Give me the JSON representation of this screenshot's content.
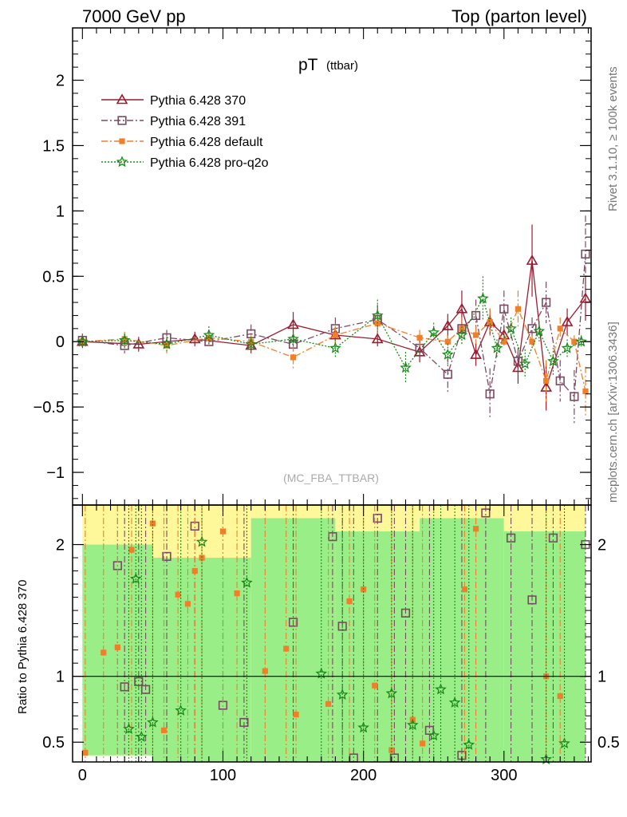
{
  "header": {
    "left": "7000 GeV pp",
    "right": "Top (parton level)"
  },
  "side": {
    "rivet": "Rivet 3.1.10, ≥ 100k events",
    "mcplots": "mcplots.cern.ch [arXiv:1306.3436]"
  },
  "plot_title": {
    "main": "pT",
    "sub": "(ttbar)"
  },
  "watermark": "(MC_FBA_TTBAR)",
  "ratio_ylabel": "Ratio to Pythia 6.428 370",
  "chart_data": {
    "type": "scatter",
    "title": "pT (ttbar)",
    "xlabel": "",
    "ylabel": "",
    "xlim": [
      -7,
      362
    ],
    "ylim": [
      -1.25,
      2.4
    ],
    "xticks": [
      0,
      100,
      200,
      300
    ],
    "yticks": [
      -1,
      -0.5,
      0,
      0.5,
      1,
      1.5,
      2
    ],
    "ytick_labels": [
      "−1",
      "−0.5",
      "0",
      "0.5",
      "1",
      "1.5",
      "2"
    ],
    "legend_position": "top-left",
    "grid": false,
    "series": [
      {
        "name": "Pythia 6.428 370",
        "color": "#9b1b2f",
        "marker": "triangle-open",
        "line": "solid",
        "x": [
          0,
          40,
          80,
          120,
          150,
          180,
          210,
          240,
          260,
          270,
          280,
          290,
          300,
          310,
          320,
          330,
          345,
          358
        ],
        "y": [
          0.0,
          -0.02,
          0.02,
          -0.03,
          0.13,
          0.05,
          0.02,
          -0.08,
          0.12,
          0.25,
          -0.1,
          0.15,
          0.05,
          -0.2,
          0.62,
          -0.35,
          0.15,
          0.33
        ]
      },
      {
        "name": "Pythia 6.428 391",
        "color": "#7a4a62",
        "marker": "square-open",
        "line": "dashdot",
        "x": [
          0,
          30,
          60,
          90,
          120,
          150,
          180,
          210,
          240,
          260,
          270,
          280,
          290,
          300,
          310,
          320,
          330,
          340,
          350,
          358
        ],
        "y": [
          0.01,
          -0.03,
          0.03,
          0.0,
          0.06,
          -0.02,
          0.1,
          0.17,
          -0.05,
          -0.25,
          0.1,
          0.2,
          -0.4,
          0.25,
          -0.15,
          0.1,
          0.3,
          -0.3,
          -0.42,
          0.67
        ]
      },
      {
        "name": "Pythia 6.428 default",
        "color": "#f07f2a",
        "marker": "square-filled",
        "line": "dashdot",
        "x": [
          0,
          30,
          60,
          90,
          120,
          150,
          180,
          210,
          240,
          260,
          270,
          280,
          290,
          300,
          310,
          320,
          330,
          340,
          350,
          358
        ],
        "y": [
          0.0,
          0.02,
          -0.03,
          0.03,
          0.0,
          -0.12,
          0.05,
          0.14,
          0.03,
          0.0,
          0.1,
          0.05,
          0.15,
          0.0,
          0.25,
          0.0,
          -0.3,
          0.1,
          0.0,
          -0.38
        ]
      },
      {
        "name": "Pythia 6.428 pro-q2o",
        "color": "#1a8a1a",
        "marker": "star",
        "line": "dotted",
        "x": [
          0,
          30,
          60,
          90,
          120,
          150,
          180,
          210,
          230,
          250,
          260,
          270,
          285,
          295,
          305,
          315,
          325,
          335,
          345,
          355
        ],
        "y": [
          0.0,
          0.01,
          -0.02,
          0.05,
          -0.02,
          0.02,
          -0.05,
          0.2,
          -0.2,
          0.07,
          -0.1,
          0.05,
          0.33,
          -0.05,
          0.1,
          -0.17,
          0.08,
          -0.15,
          -0.05,
          0.0
        ]
      }
    ],
    "ratio": {
      "xlim": [
        -7,
        362
      ],
      "ylim": [
        0.35,
        2.3
      ],
      "yticks": [
        0.5,
        1,
        2
      ],
      "ytick_labels": [
        "0.5",
        "1",
        "2"
      ],
      "reference_line": 1,
      "bands": [
        {
          "x0": 0,
          "x1": 50,
          "green_lo": 0.4,
          "green_hi": 2.0,
          "yellow_hi": 2.3
        },
        {
          "x0": 50,
          "x1": 120,
          "green_lo": 0.35,
          "green_hi": 1.9,
          "yellow_hi": 2.3
        },
        {
          "x0": 120,
          "x1": 180,
          "green_lo": 0.35,
          "green_hi": 2.2,
          "yellow_hi": 2.3
        },
        {
          "x0": 180,
          "x1": 240,
          "green_lo": 0.35,
          "green_hi": 2.1,
          "yellow_hi": 2.3
        },
        {
          "x0": 240,
          "x1": 300,
          "green_lo": 0.35,
          "green_hi": 2.2,
          "yellow_hi": 2.3
        },
        {
          "x0": 300,
          "x1": 358,
          "green_lo": 0.35,
          "green_hi": 2.1,
          "yellow_hi": 2.3
        }
      ],
      "series": [
        {
          "name": "Pythia 6.428 391",
          "color": "#7a4a62",
          "marker": "square-open",
          "x": [
            25,
            30,
            40,
            45,
            60,
            80,
            100,
            115,
            150,
            178,
            185,
            193,
            210,
            222,
            230,
            247,
            270,
            287,
            305,
            320,
            335,
            358
          ],
          "y": [
            1.84,
            0.92,
            0.96,
            0.9,
            1.91,
            2.14,
            0.78,
            0.65,
            1.41,
            2.06,
            1.38,
            0.38,
            2.2,
            0.38,
            1.48,
            0.59,
            0.4,
            2.24,
            2.05,
            1.58,
            2.05,
            2.0
          ]
        },
        {
          "name": "Pythia 6.428 default",
          "color": "#f07f2a",
          "marker": "square-filled",
          "x": [
            2,
            15,
            25,
            35,
            50,
            58,
            68,
            75,
            80,
            85,
            100,
            110,
            130,
            145,
            152,
            175,
            190,
            200,
            208,
            220,
            235,
            242,
            272,
            280,
            330,
            340
          ],
          "y": [
            0.42,
            1.18,
            1.22,
            1.96,
            2.16,
            0.59,
            1.62,
            1.55,
            1.8,
            1.9,
            2.1,
            1.63,
            1.04,
            1.21,
            0.71,
            0.79,
            1.57,
            1.66,
            0.93,
            0.44,
            0.67,
            0.49,
            1.66,
            2.12,
            1.0,
            0.85
          ]
        },
        {
          "name": "Pythia 6.428 pro-q2o",
          "color": "#1a8a1a",
          "marker": "star",
          "x": [
            33,
            38,
            42,
            50,
            70,
            85,
            117,
            170,
            185,
            200,
            220,
            235,
            250,
            255,
            265,
            275,
            330,
            343
          ],
          "y": [
            0.6,
            1.74,
            0.54,
            0.65,
            0.74,
            2.02,
            1.71,
            1.02,
            0.86,
            0.61,
            0.87,
            0.63,
            0.55,
            0.9,
            0.8,
            0.48,
            0.37,
            0.49
          ]
        }
      ]
    }
  }
}
